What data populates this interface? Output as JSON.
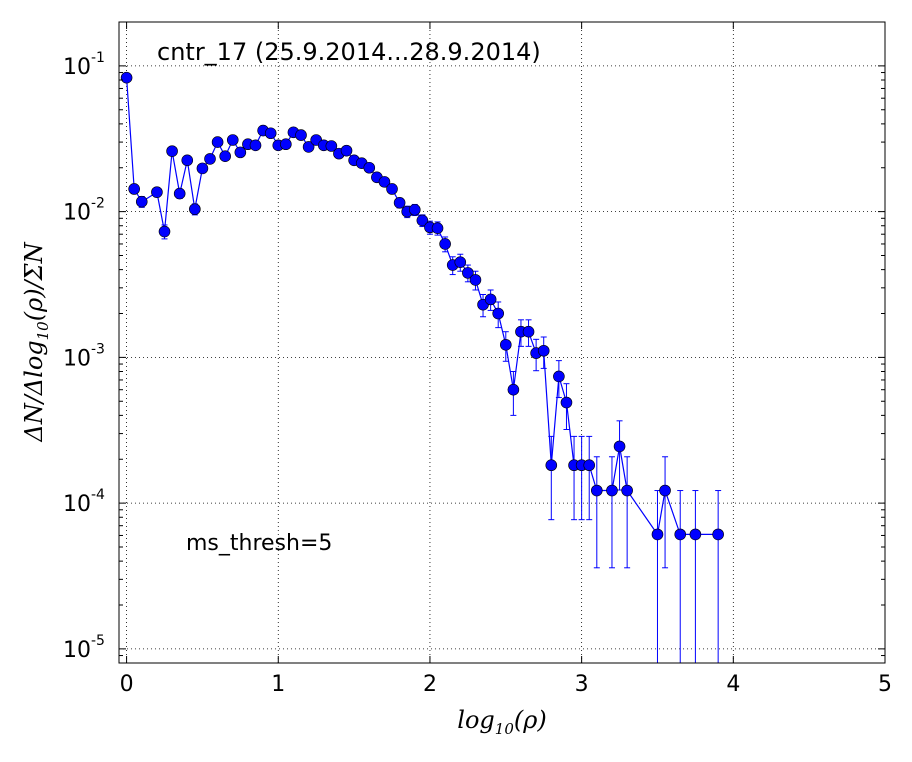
{
  "chart_data": {
    "type": "scatter",
    "title": "cntr_17 (25.9.2014...28.9.2014)",
    "annotation": "ms_thresh=5",
    "xlabel": "log10(ρ)",
    "ylabel": "ΔN/Δlog10(ρ)/ΣN",
    "xlim": [
      -0.05,
      5
    ],
    "ylim": [
      8e-06,
      0.2
    ],
    "yscale": "log",
    "grid": true,
    "color": "#0000ff",
    "xticks": [
      0,
      1,
      2,
      3,
      4,
      5
    ],
    "yticks": [
      0.1,
      0.01,
      0.001,
      0.0001,
      1e-05
    ],
    "ytick_labels": [
      {
        "base": "10",
        "exp": "-1"
      },
      {
        "base": "10",
        "exp": "-2"
      },
      {
        "base": "10",
        "exp": "-3"
      },
      {
        "base": "10",
        "exp": "-4"
      },
      {
        "base": "10",
        "exp": "-5"
      }
    ],
    "series": [
      {
        "x": [
          0,
          0.05,
          0.1,
          0.2,
          0.25,
          0.3,
          0.35,
          0.4,
          0.45,
          0.5,
          0.55,
          0.6,
          0.65,
          0.7,
          0.75,
          0.8,
          0.85,
          0.9,
          0.95,
          1.0,
          1.05,
          1.1,
          1.15,
          1.2,
          1.25,
          1.3,
          1.35,
          1.4,
          1.45,
          1.5,
          1.55,
          1.6,
          1.65,
          1.7,
          1.75,
          1.8,
          1.85,
          1.9,
          1.95,
          2.0,
          2.05,
          2.1,
          2.15,
          2.2,
          2.25,
          2.3,
          2.35,
          2.4,
          2.45,
          2.5,
          2.55,
          2.6,
          2.65,
          2.7,
          2.75,
          2.8,
          2.85,
          2.9,
          2.95,
          3.0,
          3.05,
          3.1,
          3.2,
          3.25,
          3.3,
          3.5,
          3.55,
          3.65,
          3.75,
          3.9
        ],
        "y": [
          0.083,
          0.0143,
          0.0117,
          0.0136,
          0.0073,
          0.026,
          0.0133,
          0.0225,
          0.0104,
          0.0198,
          0.023,
          0.03,
          0.024,
          0.031,
          0.0255,
          0.029,
          0.0285,
          0.036,
          0.0345,
          0.0285,
          0.029,
          0.035,
          0.0335,
          0.0278,
          0.031,
          0.0285,
          0.0282,
          0.025,
          0.0262,
          0.0225,
          0.0215,
          0.02,
          0.0172,
          0.016,
          0.0143,
          0.0115,
          0.01,
          0.0103,
          0.0087,
          0.0078,
          0.0077,
          0.006,
          0.0043,
          0.0045,
          0.0038,
          0.0034,
          0.0023,
          0.0025,
          0.002,
          0.00122,
          0.0006,
          0.0015,
          0.0015,
          0.00107,
          0.00111,
          0.000182,
          0.00074,
          0.00049,
          0.000182,
          0.000182,
          0.000182,
          0.000122,
          0.000122,
          0.000245,
          0.000122,
          6.1e-05,
          0.000122,
          6.1e-05,
          6.1e-05,
          6.1e-05
        ],
        "err": [
          0.002,
          0.001,
          0.001,
          0.001,
          0.0008,
          0.0015,
          0.001,
          0.0012,
          0.0009,
          0.0012,
          0.0013,
          0.0015,
          0.0013,
          0.0015,
          0.0014,
          0.0015,
          0.0015,
          0.0017,
          0.0016,
          0.0015,
          0.0015,
          0.0016,
          0.0016,
          0.0015,
          0.0015,
          0.0015,
          0.0015,
          0.0014,
          0.0014,
          0.0013,
          0.0013,
          0.0012,
          0.0012,
          0.0011,
          0.001,
          0.0009,
          0.0009,
          0.0009,
          0.0008,
          0.0008,
          0.0008,
          0.0007,
          0.0006,
          0.0006,
          0.0005,
          0.0005,
          0.0004,
          0.0004,
          0.0004,
          0.00028,
          0.0002,
          0.00031,
          0.00031,
          0.00026,
          0.00027,
          0.000105,
          0.00021,
          0.00017,
          0.000105,
          0.000105,
          0.000105,
          8.6e-05,
          8.6e-05,
          0.000122,
          8.6e-05,
          6.1e-05,
          8.6e-05,
          6.1e-05,
          6.1e-05,
          6.1e-05
        ]
      }
    ]
  }
}
